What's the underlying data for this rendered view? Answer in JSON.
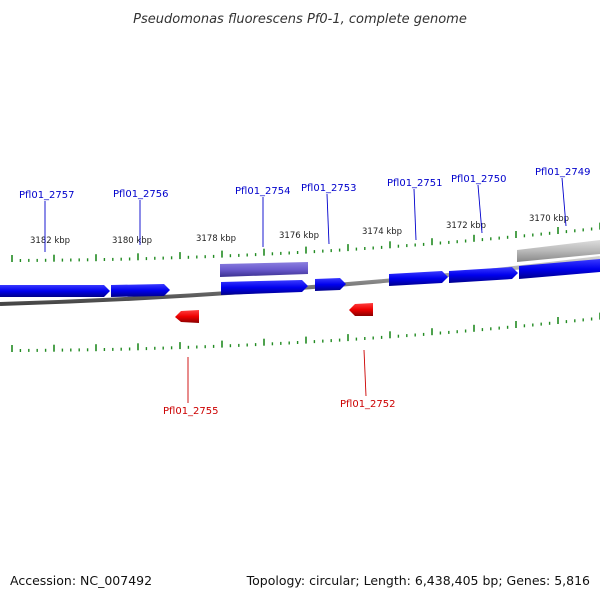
{
  "title": "Pseudomonas fluorescens Pf0-1, complete genome",
  "footer": {
    "accession": "Accession: NC_007492",
    "summary": "Topology: circular; Length: 6,438,405 bp; Genes: 5,816"
  },
  "colors": {
    "forward_gene": "#0000ee",
    "reverse_gene": "#ee0000",
    "highlight_gene": "#6a5acd",
    "grey_gene": "#b8b8b8",
    "backbone": "#888888",
    "tick": "#228b22",
    "forward_label": "#0000cc",
    "reverse_label": "#cc0000"
  },
  "kbp_labels": [
    "3182 kbp",
    "3180 kbp",
    "3178 kbp",
    "3176 kbp",
    "3174 kbp",
    "3172 kbp",
    "3170 kbp"
  ],
  "gene_labels": {
    "forward": [
      "Pfl01_2757",
      "Pfl01_2756",
      "Pfl01_2754",
      "Pfl01_2753",
      "Pfl01_2751",
      "Pfl01_2750",
      "Pfl01_2749"
    ],
    "reverse": [
      "Pfl01_2755",
      "Pfl01_2752"
    ]
  }
}
